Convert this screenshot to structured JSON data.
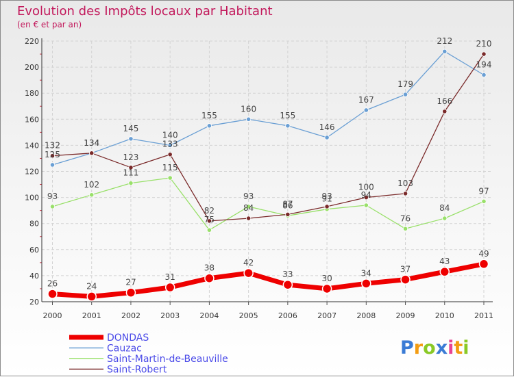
{
  "title": "Evolution des Impôts locaux par Habitant",
  "subtitle": "(en € et par an)",
  "logo": {
    "letters": [
      {
        "ch": "P",
        "color": "#3a7bd5"
      },
      {
        "ch": "r",
        "color": "#f39c12"
      },
      {
        "ch": "o",
        "color": "#8ac926"
      },
      {
        "ch": "x",
        "color": "#3a7bd5"
      },
      {
        "ch": "i",
        "color": "#e84393"
      },
      {
        "ch": "t",
        "color": "#f39c12"
      },
      {
        "ch": "i",
        "color": "#8ac926"
      }
    ]
  },
  "chart_data": {
    "type": "line",
    "title": "Evolution des Impôts locaux par Habitant",
    "subtitle": "(en € et par an)",
    "x": [
      2000,
      2001,
      2002,
      2003,
      2004,
      2005,
      2006,
      2007,
      2008,
      2009,
      2010,
      2011
    ],
    "ylim": [
      20,
      220
    ],
    "yticks": [
      20,
      40,
      60,
      80,
      100,
      120,
      140,
      160,
      180,
      200,
      220
    ],
    "grid": true,
    "legend": "bottom-left",
    "series": [
      {
        "name": "DONDAS",
        "color": "#ee0000",
        "width": 7,
        "marker": 6.5,
        "values": [
          26,
          24,
          27,
          31,
          38,
          42,
          33,
          30,
          34,
          37,
          43,
          49
        ],
        "labels": [
          "26",
          "24",
          "27",
          "31",
          "38",
          "42",
          "33",
          "30",
          "34",
          "37",
          "43",
          "49"
        ]
      },
      {
        "name": "Cauzac",
        "color": "#6a9fd4",
        "width": 1.3,
        "marker": 3.2,
        "values": [
          125,
          134,
          145,
          140,
          155,
          160,
          155,
          146,
          167,
          179,
          212,
          194
        ],
        "labels": [
          "125",
          "134",
          "145",
          "140",
          "155",
          "160",
          "155",
          "146",
          "167",
          "179",
          "212",
          "194"
        ]
      },
      {
        "name": "Saint-Martin-de-Beauville",
        "color": "#99e06a",
        "width": 1.3,
        "marker": 3.2,
        "values": [
          93,
          102,
          111,
          115,
          75,
          93,
          86,
          91,
          94,
          76,
          84,
          97
        ],
        "labels": [
          "93",
          "102",
          "111",
          "115",
          "75",
          "93",
          "86",
          "91",
          "94",
          "76",
          "84",
          "97"
        ]
      },
      {
        "name": "Saint-Robert",
        "color": "#7a2a2a",
        "width": 1.3,
        "marker": 3.2,
        "values": [
          132,
          134,
          123,
          133,
          82,
          84,
          87,
          93,
          100,
          103,
          166,
          210
        ],
        "labels": [
          "132",
          "134",
          "123",
          "133",
          "82",
          "84",
          "87",
          "93",
          "100",
          "103",
          "166",
          "210"
        ]
      }
    ]
  }
}
